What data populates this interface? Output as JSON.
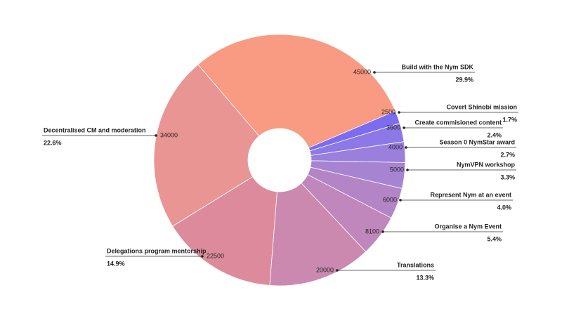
{
  "chart_data": {
    "type": "donut",
    "categories": [
      "Build with the Nym SDK",
      "Covert Shinobi mission",
      "Create commisioned content",
      "Season 0 NymStar award",
      "NymVPN workshop",
      "Represent Nym at an event",
      "Organise a Nym Event",
      "Translations",
      "Delegations program mentorship",
      "Decentralised CM and moderation"
    ],
    "values": [
      45000,
      2500,
      3600,
      4000,
      5000,
      6000,
      8100,
      20000,
      22500,
      34000
    ],
    "percent_labels": [
      "29.9%",
      "1.7%",
      "2.4%",
      "2.7%",
      "3.3%",
      "4.0%",
      "5.4%",
      "13.3%",
      "14.9%",
      "22.6%"
    ],
    "colors": [
      "#f99a82",
      "#7b6cf0",
      "#8c78e6",
      "#9a7fdc",
      "#a784d2",
      "#b384c6",
      "#c087bd",
      "#cc89b0",
      "#dd8b9c",
      "#e99593"
    ]
  }
}
